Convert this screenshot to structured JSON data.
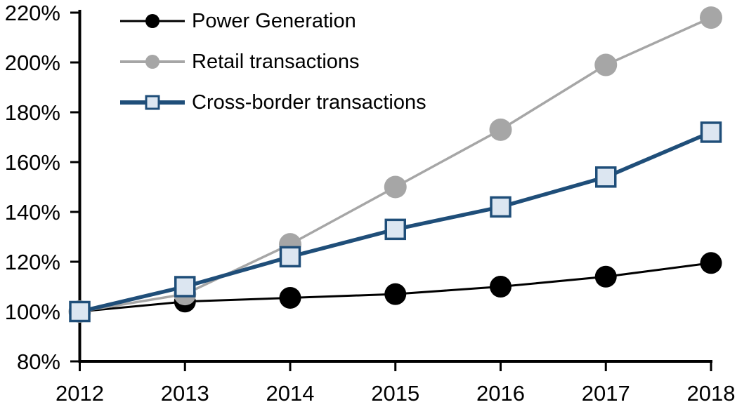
{
  "chart_data": {
    "type": "line",
    "title": "",
    "xlabel": "",
    "ylabel": "",
    "categories": [
      "2012",
      "2013",
      "2014",
      "2015",
      "2016",
      "2017",
      "2018"
    ],
    "series": [
      {
        "name": "Power Generation",
        "values": [
          100,
          104,
          105.5,
          107,
          110,
          114,
          119.5
        ],
        "color": "#000000",
        "marker": "circle",
        "marker_fill": "#000000",
        "marker_radius": 15.5,
        "line_width": 3
      },
      {
        "name": "Retail transactions",
        "values": [
          100,
          107,
          127,
          150,
          173,
          199,
          218
        ],
        "color": "#A6A6A6",
        "marker": "circle",
        "marker_fill": "#A6A6A6",
        "marker_radius": 16,
        "line_width": 3.5
      },
      {
        "name": "Cross-border transactions",
        "values": [
          100,
          110,
          122,
          133,
          142,
          154,
          172
        ],
        "color": "#1F4E79",
        "marker": "square",
        "marker_fill": "#DCE6F1",
        "marker_radius": 13.5,
        "line_width": 5.5
      }
    ],
    "y_axis": {
      "min": 80,
      "max": 220,
      "step": 20,
      "tick_labels": [
        "80%",
        "100%",
        "120%",
        "140%",
        "160%",
        "180%",
        "200%",
        "220%"
      ]
    },
    "x_axis": {
      "tick_labels": [
        "2012",
        "2013",
        "2014",
        "2015",
        "2016",
        "2017",
        "2018"
      ]
    },
    "legend_position": "top-left",
    "grid": false,
    "background_color": "#FFFFFF"
  }
}
